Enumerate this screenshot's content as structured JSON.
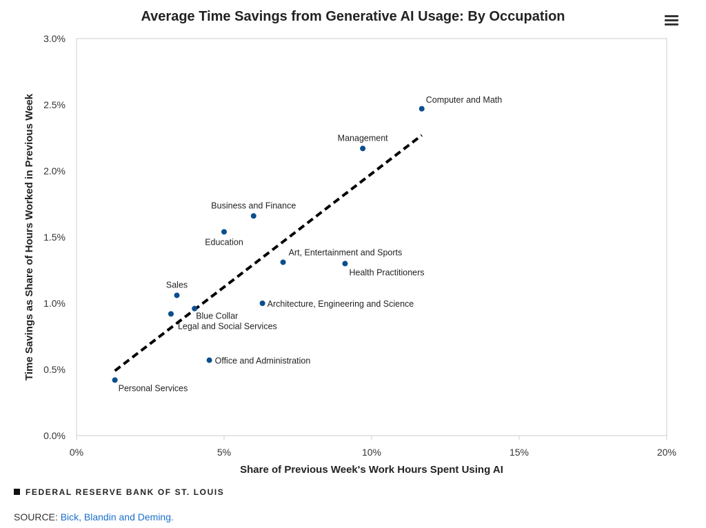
{
  "chart_data": {
    "type": "scatter",
    "title": "Average Time Savings from Generative AI Usage: By Occupation",
    "xlabel": "Share of Previous Week's Work Hours Spent Using AI",
    "ylabel": "Time Savings as Share of Hours Worked in Previous Week",
    "xlim": [
      0,
      20
    ],
    "ylim": [
      0,
      3.0
    ],
    "xticks": [
      "0%",
      "5%",
      "10%",
      "15%",
      "20%"
    ],
    "yticks": [
      "0.0%",
      "0.5%",
      "1.0%",
      "1.5%",
      "2.0%",
      "2.5%",
      "3.0%"
    ],
    "grid": false,
    "point_color": "#0b4f8c",
    "points": [
      {
        "label": "Computer and Math",
        "x": 11.7,
        "y": 2.47
      },
      {
        "label": "Management",
        "x": 9.7,
        "y": 2.17
      },
      {
        "label": "Business and Finance",
        "x": 6.0,
        "y": 1.66
      },
      {
        "label": "Education",
        "x": 5.0,
        "y": 1.54
      },
      {
        "label": "Art, Entertainment and Sports",
        "x": 7.0,
        "y": 1.31
      },
      {
        "label": "Health Practitioners",
        "x": 9.1,
        "y": 1.3
      },
      {
        "label": "Sales",
        "x": 3.4,
        "y": 1.06
      },
      {
        "label": "Architecture, Engineering and Science",
        "x": 6.3,
        "y": 1.0
      },
      {
        "label": "Blue Collar",
        "x": 4.0,
        "y": 0.96
      },
      {
        "label": "Legal and Social Services",
        "x": 3.2,
        "y": 0.92
      },
      {
        "label": "Office and Administration",
        "x": 4.5,
        "y": 0.57
      },
      {
        "label": "Personal Services",
        "x": 1.3,
        "y": 0.42
      }
    ],
    "trendline": {
      "style": "dashed",
      "color": "#000000",
      "from": {
        "x": 1.3,
        "y": 0.49
      },
      "to": {
        "x": 11.7,
        "y": 2.27
      }
    }
  },
  "footer": {
    "brand": "FEDERAL RESERVE BANK OF ST. LOUIS",
    "source_label": "SOURCE:",
    "source_link": "Bick, Blandin and Deming."
  },
  "menu_icon": "hamburger-menu-icon"
}
